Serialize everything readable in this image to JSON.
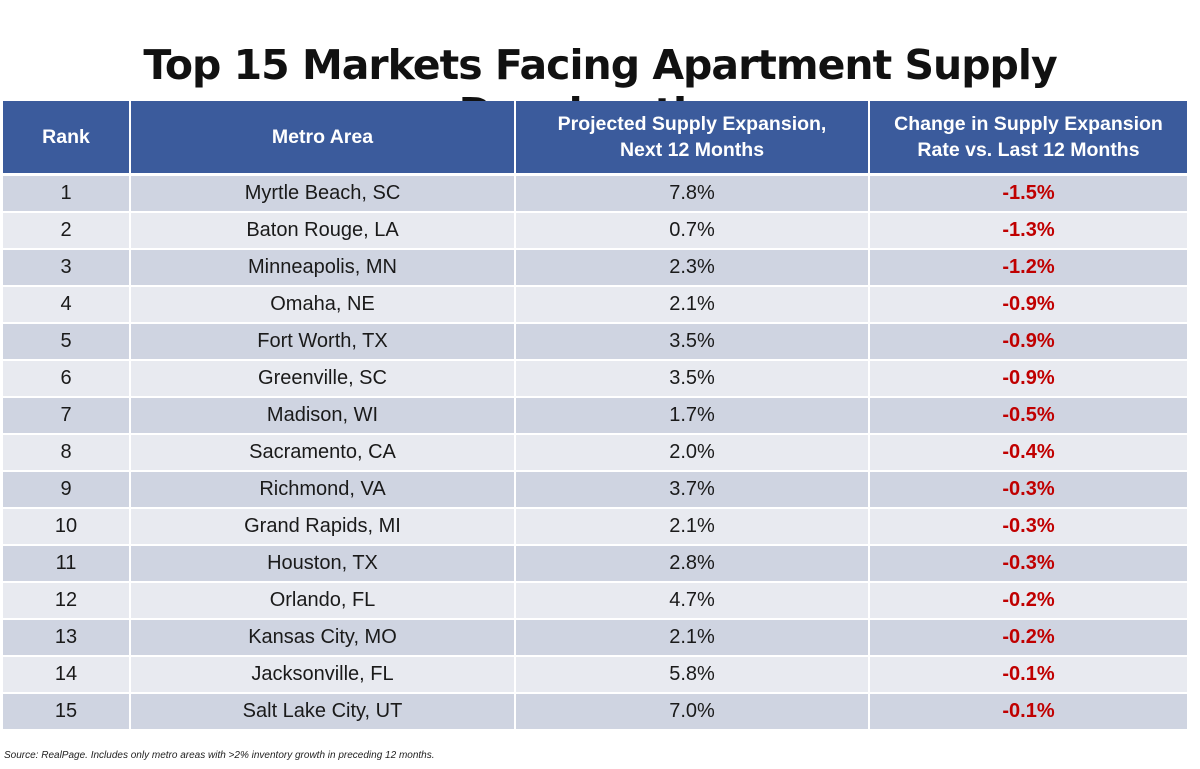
{
  "title": {
    "prefix": "Top 15 Markets Facing Apartment Supply ",
    "underlined": "Deceleration"
  },
  "table": {
    "headers": {
      "rank": "Rank",
      "metro": "Metro Area",
      "projected_line1": "Projected Supply Expansion,",
      "projected_line2": "Next 12 Months",
      "change_line1": "Change in Supply Expansion",
      "change_line2": "Rate vs. Last 12 Months"
    },
    "rows": [
      {
        "rank": "1",
        "metro": "Myrtle Beach, SC",
        "projected": "7.8%",
        "change": "-1.5%"
      },
      {
        "rank": "2",
        "metro": "Baton Rouge, LA",
        "projected": "0.7%",
        "change": "-1.3%"
      },
      {
        "rank": "3",
        "metro": "Minneapolis, MN",
        "projected": "2.3%",
        "change": "-1.2%"
      },
      {
        "rank": "4",
        "metro": "Omaha, NE",
        "projected": "2.1%",
        "change": "-0.9%"
      },
      {
        "rank": "5",
        "metro": "Fort Worth, TX",
        "projected": "3.5%",
        "change": "-0.9%"
      },
      {
        "rank": "6",
        "metro": "Greenville, SC",
        "projected": "3.5%",
        "change": "-0.9%"
      },
      {
        "rank": "7",
        "metro": "Madison, WI",
        "projected": "1.7%",
        "change": "-0.5%"
      },
      {
        "rank": "8",
        "metro": "Sacramento, CA",
        "projected": "2.0%",
        "change": "-0.4%"
      },
      {
        "rank": "9",
        "metro": "Richmond, VA",
        "projected": "3.7%",
        "change": "-0.3%"
      },
      {
        "rank": "10",
        "metro": "Grand Rapids, MI",
        "projected": "2.1%",
        "change": "-0.3%"
      },
      {
        "rank": "11",
        "metro": "Houston, TX",
        "projected": "2.8%",
        "change": "-0.3%"
      },
      {
        "rank": "12",
        "metro": "Orlando, FL",
        "projected": "4.7%",
        "change": "-0.2%"
      },
      {
        "rank": "13",
        "metro": "Kansas City, MO",
        "projected": "2.1%",
        "change": "-0.2%"
      },
      {
        "rank": "14",
        "metro": "Jacksonville, FL",
        "projected": "5.8%",
        "change": "-0.1%"
      },
      {
        "rank": "15",
        "metro": "Salt Lake City, UT",
        "projected": "7.0%",
        "change": "-0.1%"
      }
    ]
  },
  "source": "Source: RealPage. Includes only metro areas with >2% inventory growth in preceding 12 months.",
  "colors": {
    "header_bg": "#3b5b9c",
    "row_odd": "#cfd4e1",
    "row_even": "#e8eaf0",
    "negative_change": "#c00000"
  }
}
